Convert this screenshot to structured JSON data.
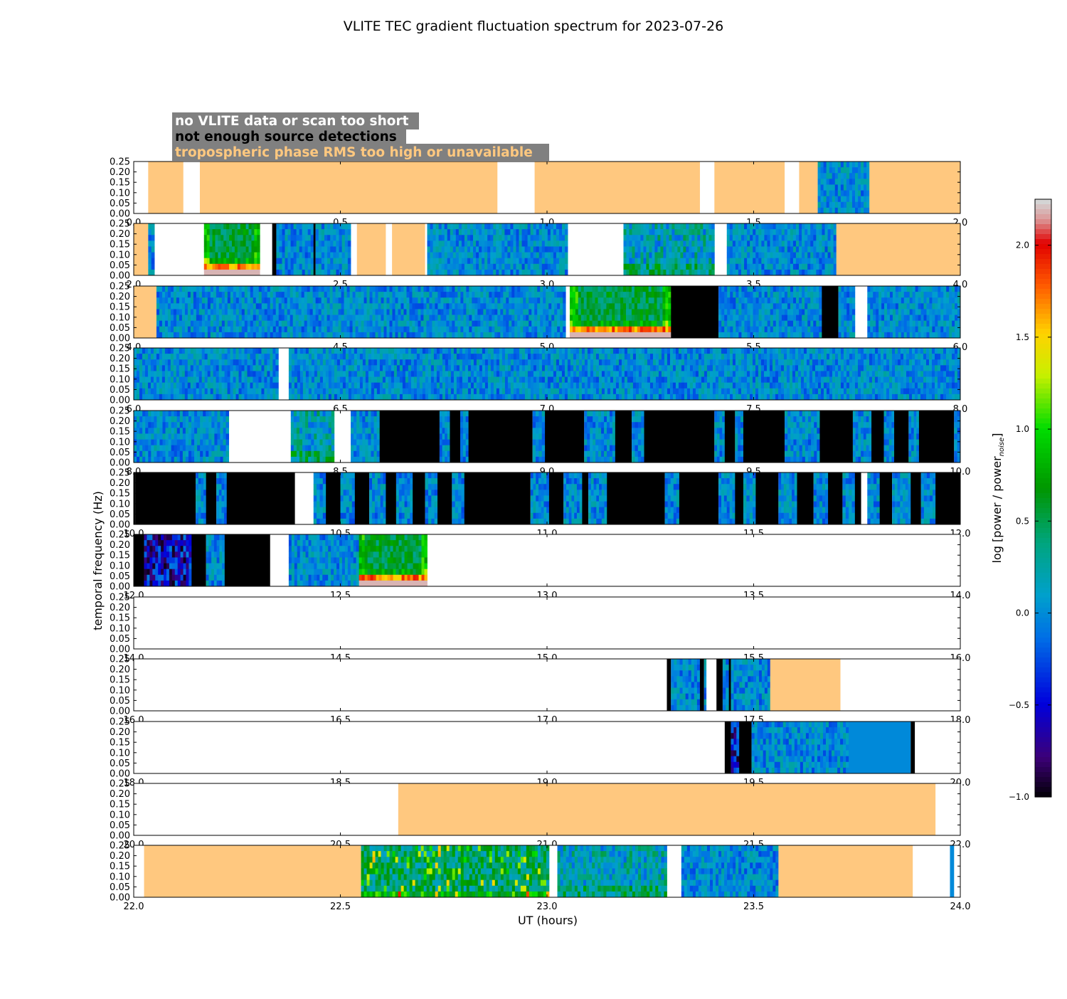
{
  "chart_data": {
    "type": "heatmap",
    "title": "VLITE TEC gradient fluctuation spectrum for 2023-07-26",
    "xlabel": "UT (hours)",
    "ylabel": "temporal frequency (Hz)",
    "colorbar_label": "log [power / power",
    "colorbar_label_sub": "noise",
    "colorbar_label_end": "]",
    "colorbar_range": [
      -1.0,
      2.25
    ],
    "colorbar_ticks": [
      "2.0",
      "1.5",
      "1.0",
      "0.5",
      "0.0",
      "−0.5",
      "−1.0"
    ],
    "colorbar_tick_values": [
      2.0,
      1.5,
      1.0,
      0.5,
      0.0,
      -0.5,
      -1.0
    ],
    "y_ticks": [
      "0.25",
      "0.20",
      "0.15",
      "0.10",
      "0.05",
      "0.00"
    ],
    "y_tick_values": [
      0.25,
      0.2,
      0.15,
      0.1,
      0.05,
      0.0
    ],
    "ylim": [
      0,
      0.25
    ],
    "legend": [
      {
        "text": "no VLITE data or scan too short",
        "color": "#ffffff"
      },
      {
        "text": "not enough source detections",
        "color": "#000000"
      },
      {
        "text": "tropospheric phase RMS too high or unavailable",
        "color": "#ffc87f"
      }
    ],
    "colors": {
      "tropo": "#ffc87f",
      "black": "#000000",
      "nodata": "#ffffff",
      "legend_bg": "#808080"
    },
    "rows": [
      {
        "xlim": [
          0,
          2
        ],
        "x_ticks": [
          "0.0",
          "0.5",
          "1.0",
          "1.5",
          "2.0"
        ],
        "segments": [
          [
            "o",
            0.035,
            0.12
          ],
          [
            "o",
            0.16,
            0.88
          ],
          [
            "o",
            0.97,
            1.37
          ],
          [
            "o",
            1.405,
            1.575
          ],
          [
            "o",
            1.61,
            1.655
          ],
          [
            "s",
            1.655,
            1.78,
            0
          ],
          [
            "o",
            1.78,
            2.0
          ]
        ]
      },
      {
        "xlim": [
          2,
          4
        ],
        "x_ticks": [
          "2.0",
          "2.5",
          "3.0",
          "3.5",
          "4.0"
        ],
        "segments": [
          [
            "o",
            2.0,
            2.035
          ],
          [
            "s",
            2.035,
            2.05,
            0
          ],
          [
            "s",
            2.17,
            2.305,
            2
          ],
          [
            "k",
            2.335,
            2.345
          ],
          [
            "s",
            2.345,
            2.435,
            0
          ],
          [
            "k",
            2.435,
            2.44
          ],
          [
            "s",
            2.44,
            2.525,
            0
          ],
          [
            "o",
            2.54,
            2.61
          ],
          [
            "o",
            2.625,
            2.705
          ],
          [
            "s",
            2.71,
            3.05,
            0
          ],
          [
            "s",
            3.185,
            3.405,
            1
          ],
          [
            "s",
            3.435,
            3.7,
            0
          ],
          [
            "o",
            3.7,
            4.0
          ]
        ]
      },
      {
        "xlim": [
          4,
          6
        ],
        "x_ticks": [
          "4.0",
          "4.5",
          "5.0",
          "5.5",
          "6.0"
        ],
        "segments": [
          [
            "o",
            4.0,
            4.055
          ],
          [
            "s",
            4.055,
            5.045,
            0
          ],
          [
            "s",
            5.055,
            5.3,
            2
          ],
          [
            "k",
            5.3,
            5.415
          ],
          [
            "s",
            5.415,
            5.665,
            0
          ],
          [
            "k",
            5.665,
            5.705
          ],
          [
            "s",
            5.705,
            5.745,
            0
          ],
          [
            "s",
            5.775,
            6.0,
            0
          ]
        ]
      },
      {
        "xlim": [
          6,
          8
        ],
        "x_ticks": [
          "6.0",
          "6.5",
          "7.0",
          "7.5",
          "8.0"
        ],
        "segments": [
          [
            "s",
            6.0,
            6.35,
            0
          ],
          [
            "s",
            6.375,
            8.0,
            0
          ]
        ]
      },
      {
        "xlim": [
          8,
          10
        ],
        "x_ticks": [
          "8.0",
          "8.5",
          "9.0",
          "9.5",
          "10.0"
        ],
        "segments": [
          [
            "s",
            8.0,
            8.23,
            0
          ],
          [
            "s",
            8.38,
            8.485,
            1
          ],
          [
            "s",
            8.525,
            8.595,
            0
          ],
          [
            "k",
            8.595,
            8.74
          ],
          [
            "s",
            8.74,
            8.765,
            0
          ],
          [
            "k",
            8.765,
            8.79
          ],
          [
            "s",
            8.79,
            8.81,
            0
          ],
          [
            "k",
            8.81,
            8.965
          ],
          [
            "s",
            8.965,
            8.995,
            0
          ],
          [
            "k",
            8.995,
            9.09
          ],
          [
            "s",
            9.09,
            9.165,
            0
          ],
          [
            "k",
            9.165,
            9.205
          ],
          [
            "s",
            9.205,
            9.235,
            0
          ],
          [
            "k",
            9.235,
            9.405
          ],
          [
            "s",
            9.405,
            9.43,
            0
          ],
          [
            "k",
            9.43,
            9.455
          ],
          [
            "s",
            9.455,
            9.475,
            0
          ],
          [
            "k",
            9.475,
            9.575
          ],
          [
            "s",
            9.575,
            9.66,
            0
          ],
          [
            "k",
            9.66,
            9.74
          ],
          [
            "s",
            9.74,
            9.785,
            0
          ],
          [
            "k",
            9.785,
            9.815
          ],
          [
            "s",
            9.815,
            9.84,
            0
          ],
          [
            "k",
            9.84,
            9.875
          ],
          [
            "s",
            9.875,
            9.9,
            0
          ],
          [
            "k",
            9.9,
            9.985
          ],
          [
            "s",
            9.985,
            10.0,
            0
          ]
        ]
      },
      {
        "xlim": [
          10,
          12
        ],
        "x_ticks": [
          "10.0",
          "10.5",
          "11.0",
          "11.5",
          "12.0"
        ],
        "segments": [
          [
            "k",
            10.0,
            10.005
          ],
          [
            "k",
            10.005,
            10.15
          ],
          [
            "s",
            10.15,
            10.175,
            0
          ],
          [
            "k",
            10.175,
            10.2
          ],
          [
            "s",
            10.2,
            10.225,
            0
          ],
          [
            "k",
            10.225,
            10.39
          ],
          [
            "s",
            10.435,
            10.465,
            0
          ],
          [
            "k",
            10.465,
            10.5
          ],
          [
            "s",
            10.5,
            10.535,
            0
          ],
          [
            "k",
            10.535,
            10.57
          ],
          [
            "s",
            10.57,
            10.61,
            0
          ],
          [
            "k",
            10.61,
            10.635
          ],
          [
            "s",
            10.635,
            10.675,
            0
          ],
          [
            "k",
            10.675,
            10.705
          ],
          [
            "s",
            10.705,
            10.735,
            0
          ],
          [
            "k",
            10.735,
            10.77
          ],
          [
            "s",
            10.77,
            10.8,
            0
          ],
          [
            "k",
            10.8,
            10.96
          ],
          [
            "s",
            10.96,
            11.005,
            0
          ],
          [
            "k",
            11.005,
            11.04
          ],
          [
            "s",
            11.04,
            11.085,
            0
          ],
          [
            "k",
            11.085,
            11.1
          ],
          [
            "s",
            11.1,
            11.145,
            0
          ],
          [
            "k",
            11.145,
            11.285
          ],
          [
            "s",
            11.285,
            11.32,
            0
          ],
          [
            "k",
            11.32,
            11.415
          ],
          [
            "s",
            11.415,
            11.455,
            0
          ],
          [
            "k",
            11.455,
            11.475
          ],
          [
            "s",
            11.475,
            11.505,
            0
          ],
          [
            "k",
            11.505,
            11.56
          ],
          [
            "s",
            11.56,
            11.605,
            0
          ],
          [
            "k",
            11.605,
            11.645
          ],
          [
            "s",
            11.645,
            11.68,
            0
          ],
          [
            "k",
            11.68,
            11.715
          ],
          [
            "s",
            11.715,
            11.745,
            0
          ],
          [
            "k",
            11.745,
            11.76
          ],
          [
            "s",
            11.775,
            11.805,
            0
          ],
          [
            "k",
            11.805,
            11.835
          ],
          [
            "s",
            11.835,
            11.88,
            0
          ],
          [
            "k",
            11.88,
            11.905
          ],
          [
            "s",
            11.905,
            11.94,
            0
          ],
          [
            "k",
            11.94,
            12.0
          ]
        ]
      },
      {
        "xlim": [
          12,
          14
        ],
        "x_ticks": [
          "12.0",
          "12.5",
          "13.0",
          "13.5",
          "14.0"
        ],
        "segments": [
          [
            "k",
            12.0,
            12.025
          ],
          [
            "s",
            12.025,
            12.14,
            3
          ],
          [
            "k",
            12.14,
            12.175
          ],
          [
            "s",
            12.175,
            12.22,
            0
          ],
          [
            "k",
            12.22,
            12.33
          ],
          [
            "s",
            12.375,
            12.545,
            0
          ],
          [
            "s",
            12.545,
            12.71,
            2
          ]
        ]
      },
      {
        "xlim": [
          14,
          16
        ],
        "x_ticks": [
          "14.0",
          "14.5",
          "15.0",
          "15.5",
          "16.0"
        ],
        "segments": []
      },
      {
        "xlim": [
          16,
          18
        ],
        "x_ticks": [
          "16.0",
          "16.5",
          "17.0",
          "17.5",
          "18.0"
        ],
        "segments": [
          [
            "k",
            17.29,
            17.3
          ],
          [
            "s",
            17.3,
            17.37,
            0
          ],
          [
            "k",
            17.37,
            17.38
          ],
          [
            "s",
            17.38,
            17.385,
            0
          ],
          [
            "k",
            17.41,
            17.425
          ],
          [
            "s",
            17.425,
            17.44,
            0
          ],
          [
            "k",
            17.44,
            17.445
          ],
          [
            "s",
            17.445,
            17.54,
            0
          ],
          [
            "o",
            17.54,
            17.71
          ]
        ]
      },
      {
        "xlim": [
          18,
          20
        ],
        "x_ticks": [
          "18.0",
          "18.5",
          "19.0",
          "19.5",
          "20.0"
        ],
        "segments": [
          [
            "k",
            19.43,
            19.445
          ],
          [
            "s",
            19.445,
            19.465,
            3
          ],
          [
            "k",
            19.465,
            19.495
          ],
          [
            "s",
            19.495,
            19.73,
            0
          ],
          [
            "c",
            19.73,
            19.88
          ],
          [
            "k",
            19.88,
            19.89
          ]
        ]
      },
      {
        "xlim": [
          20,
          22
        ],
        "x_ticks": [
          "20.0",
          "20.5",
          "21.0",
          "21.5",
          "22.0"
        ],
        "segments": [
          [
            "o",
            20.64,
            21.94
          ]
        ]
      },
      {
        "xlim": [
          22,
          24
        ],
        "x_ticks": [
          "22.0",
          "22.5",
          "23.0",
          "23.5",
          "24.0"
        ],
        "segments": [
          [
            "o",
            22.025,
            22.55
          ],
          [
            "s",
            22.55,
            23.005,
            4
          ],
          [
            "s",
            23.025,
            23.29,
            1
          ],
          [
            "s",
            23.325,
            23.56,
            0
          ],
          [
            "o",
            23.56,
            23.885
          ],
          [
            "c",
            23.975,
            23.985
          ]
        ]
      }
    ]
  }
}
